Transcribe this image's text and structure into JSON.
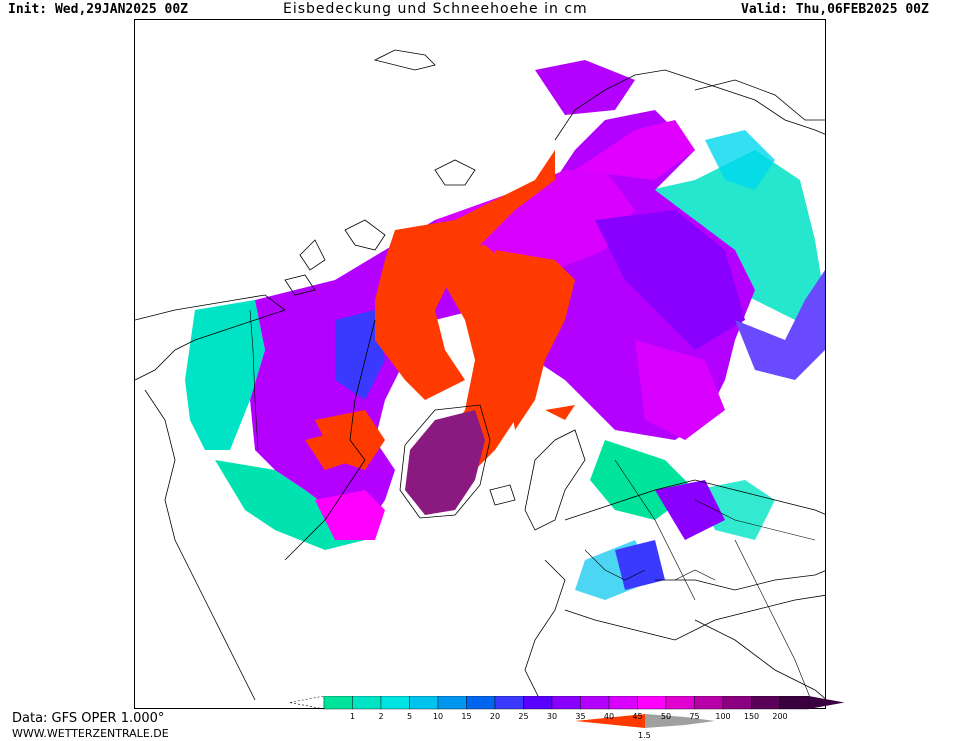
{
  "header": {
    "init": "Init: Wed,29JAN2025 00Z",
    "title": "Eisbedeckung und Schneehoehe in cm",
    "valid": "Valid: Thu,06FEB2025 00Z"
  },
  "footer": {
    "data_source": "Data: GFS OPER 1.000°",
    "website": "WWW.WETTERZENTRALE.DE"
  },
  "legend": {
    "snow_levels": [
      "1",
      "2",
      "5",
      "10",
      "15",
      "20",
      "25",
      "30",
      "35",
      "40",
      "45",
      "50",
      "75",
      "100",
      "150",
      "200"
    ],
    "snow_colors": [
      "#00e39a",
      "#00e3c4",
      "#00e3e3",
      "#00c4ee",
      "#0096f0",
      "#0066f0",
      "#3a3aff",
      "#5a00ff",
      "#8a00ff",
      "#b400ff",
      "#d800ff",
      "#ff00ff",
      "#e000d0",
      "#b800a8",
      "#8a0080",
      "#5a0058",
      "#3a0040"
    ],
    "ice_label": "1.5",
    "ice_color": "#ff3a00",
    "ice_gray": "#a0a0a0"
  },
  "map": {
    "colors": {
      "sea_ice": "#ff3a00",
      "snow_light": "#00e3b0",
      "snow_mid": "#6a4aff",
      "snow_heavy": "#e000ff",
      "greenland": "#8a1a80",
      "coast": "#000000"
    }
  }
}
